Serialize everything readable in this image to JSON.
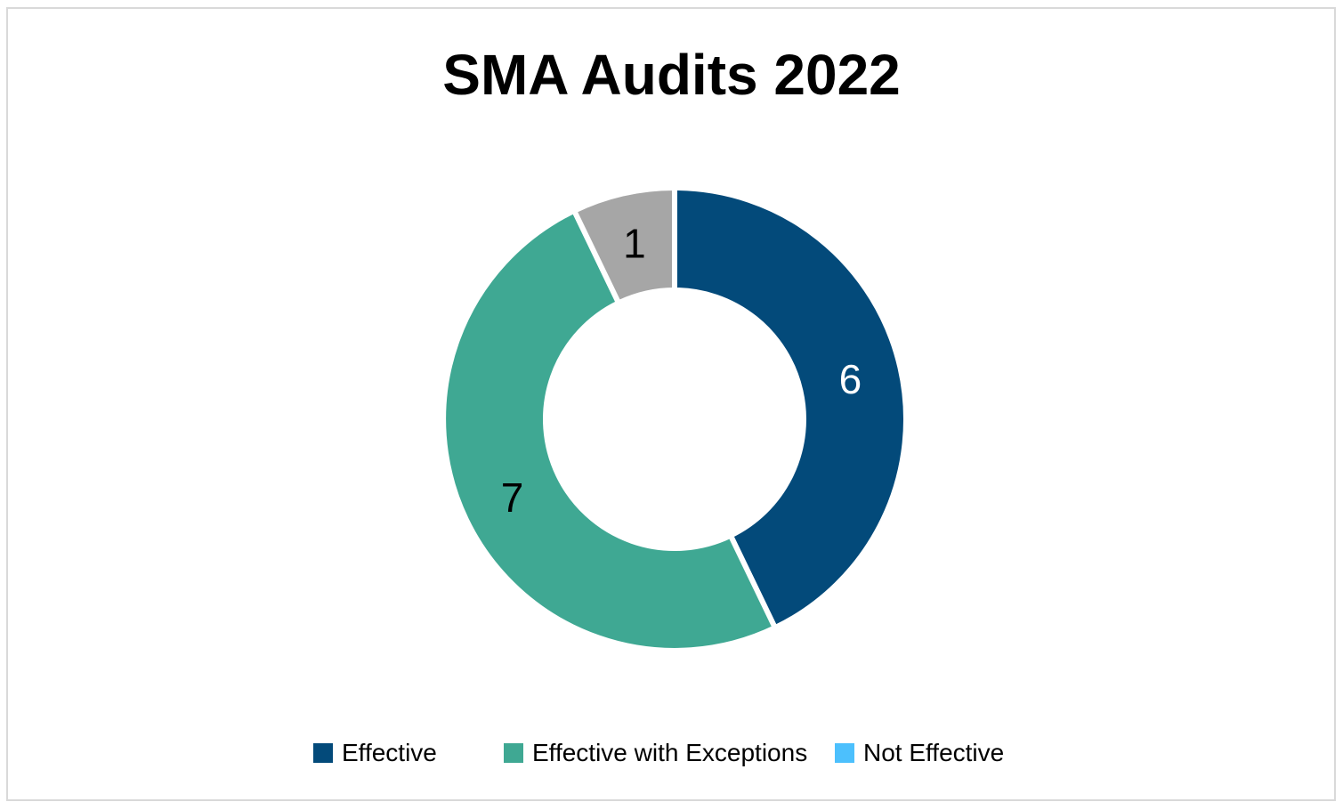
{
  "chart_data": {
    "type": "pie",
    "variant": "donut",
    "title": "SMA Audits 2022",
    "categories": [
      "Effective",
      "Effective with Exceptions",
      "Not Effective"
    ],
    "values": [
      6,
      7,
      1
    ],
    "slice_colors": [
      "#034a7a",
      "#3fa893",
      "#a6a6a6"
    ],
    "legend_colors": [
      "#034a7a",
      "#3fa893",
      "#4cc0fd"
    ],
    "data_label_colors": [
      "#ffffff",
      "#000000",
      "#000000"
    ],
    "legend_position": "bottom"
  }
}
